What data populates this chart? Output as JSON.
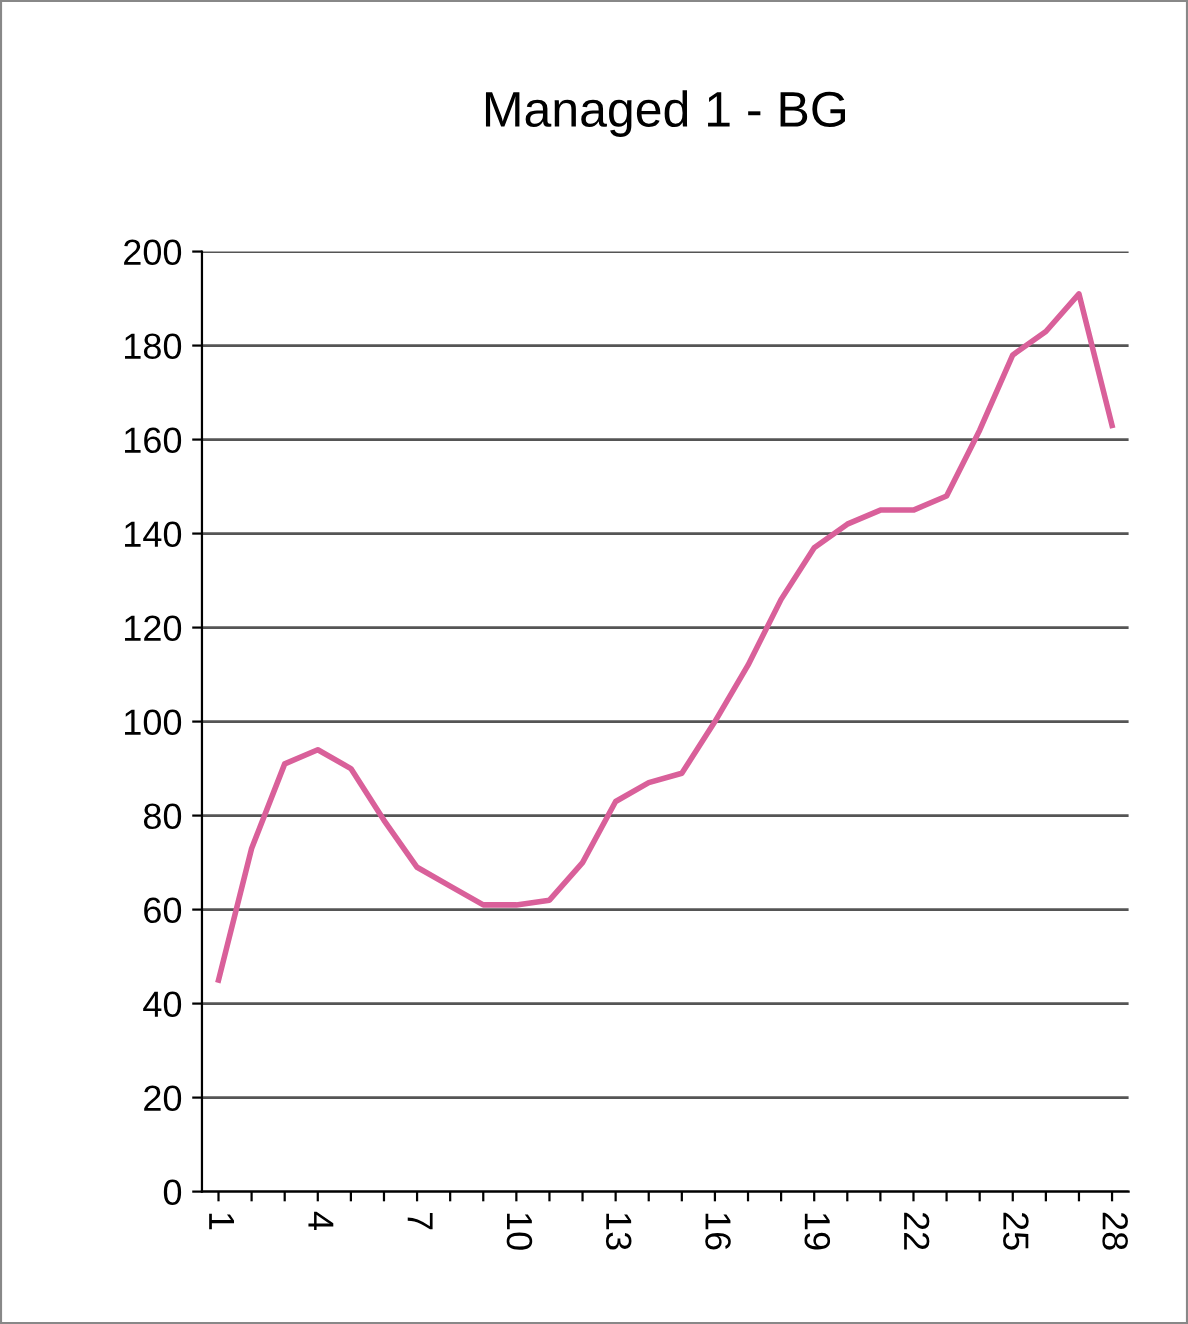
{
  "chart_data": {
    "type": "line",
    "title": "Managed 1 - BG",
    "categories": [
      "1",
      null,
      null,
      "4",
      null,
      null,
      "7",
      null,
      null,
      "10",
      null,
      null,
      "13",
      null,
      null,
      "16",
      null,
      null,
      "19",
      null,
      null,
      "22",
      null,
      null,
      "25",
      null,
      null,
      "28"
    ],
    "series": [
      {
        "color": "#d9609a",
        "values": [
          45,
          73,
          91,
          94,
          90,
          79,
          69,
          65,
          61,
          61,
          62,
          70,
          83,
          87,
          89,
          100,
          112,
          126,
          137,
          142,
          145,
          145,
          148,
          162,
          178,
          183,
          191,
          163
        ]
      }
    ],
    "ylim": [
      0,
      200
    ],
    "yticks": [
      0,
      20,
      40,
      60,
      80,
      100,
      120,
      140,
      160,
      180,
      200
    ],
    "grid": "y",
    "legend": false,
    "marker": "none",
    "line_style": "solid"
  }
}
